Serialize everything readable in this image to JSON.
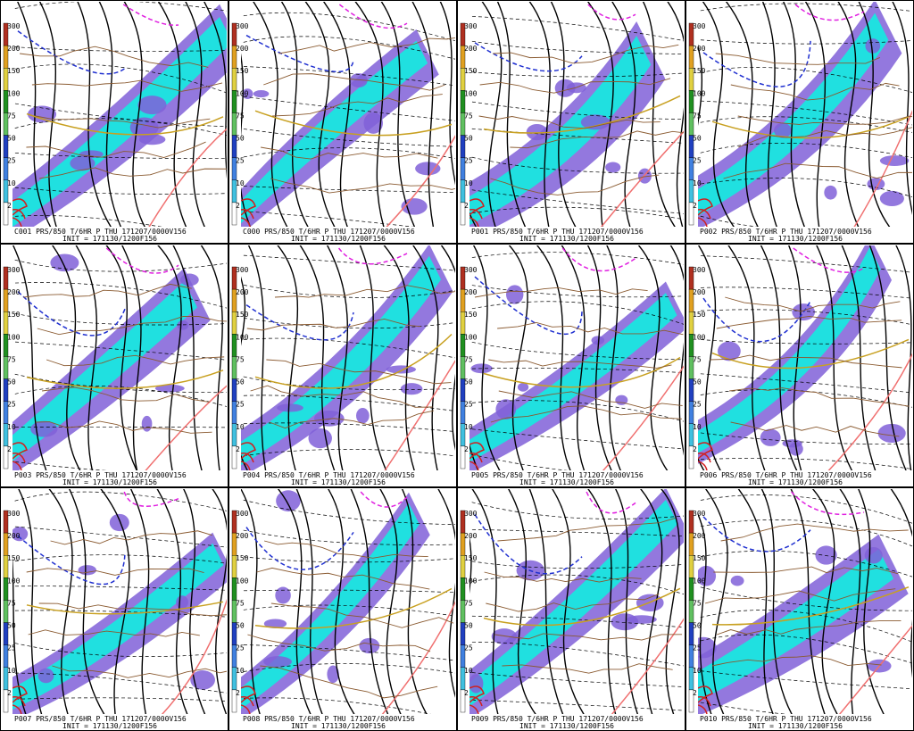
{
  "colorbar": {
    "labels": [
      300,
      200,
      150,
      100,
      75,
      50,
      25,
      10,
      2
    ]
  },
  "panels": [
    {
      "caption": "C001 PRS/850 T/6HR P THU 171207/0000V156",
      "init": "INIT = 171130/1200F156"
    },
    {
      "caption": "C000 PRS/850 T/6HR P THU 171207/0000V156",
      "init": "INIT = 171130/1200F156"
    },
    {
      "caption": "P001 PRS/850 T/6HR P THU 171207/0000V156",
      "init": "INIT = 171130/1200F156"
    },
    {
      "caption": "P002 PRS/850 T/6HR P THU 171207/0000V156",
      "init": "INIT = 171130/1200F156"
    },
    {
      "caption": "P003 PRS/850 T/6HR P THU 171207/0000V156",
      "init": "INIT = 171130/1200F156"
    },
    {
      "caption": "P004 PRS/850 T/6HR P THU 171207/0000V156",
      "init": "INIT = 171130/1200F156"
    },
    {
      "caption": "P005 PRS/850 T/6HR P THU 171207/0000V156",
      "init": "INIT = 171130/1200F156"
    },
    {
      "caption": "P006 PRS/850 T/6HR P THU 171207/0000V156",
      "init": "INIT = 171130/1200F156"
    },
    {
      "caption": "P007 PRS/850 T/6HR P THU 171207/0000V156",
      "init": "INIT = 171130/1200F156"
    },
    {
      "caption": "P008 PRS/850 T/6HR P THU 171207/0000V156",
      "init": "INIT = 171130/1200F156"
    },
    {
      "caption": "P009 PRS/850 T/6HR P THU 171207/0000V156",
      "init": "INIT = 171130/1200F156"
    },
    {
      "caption": "P010 PRS/850 T/6HR P THU 171207/0000V156",
      "init": "INIT = 171130/1200F156"
    }
  ]
}
